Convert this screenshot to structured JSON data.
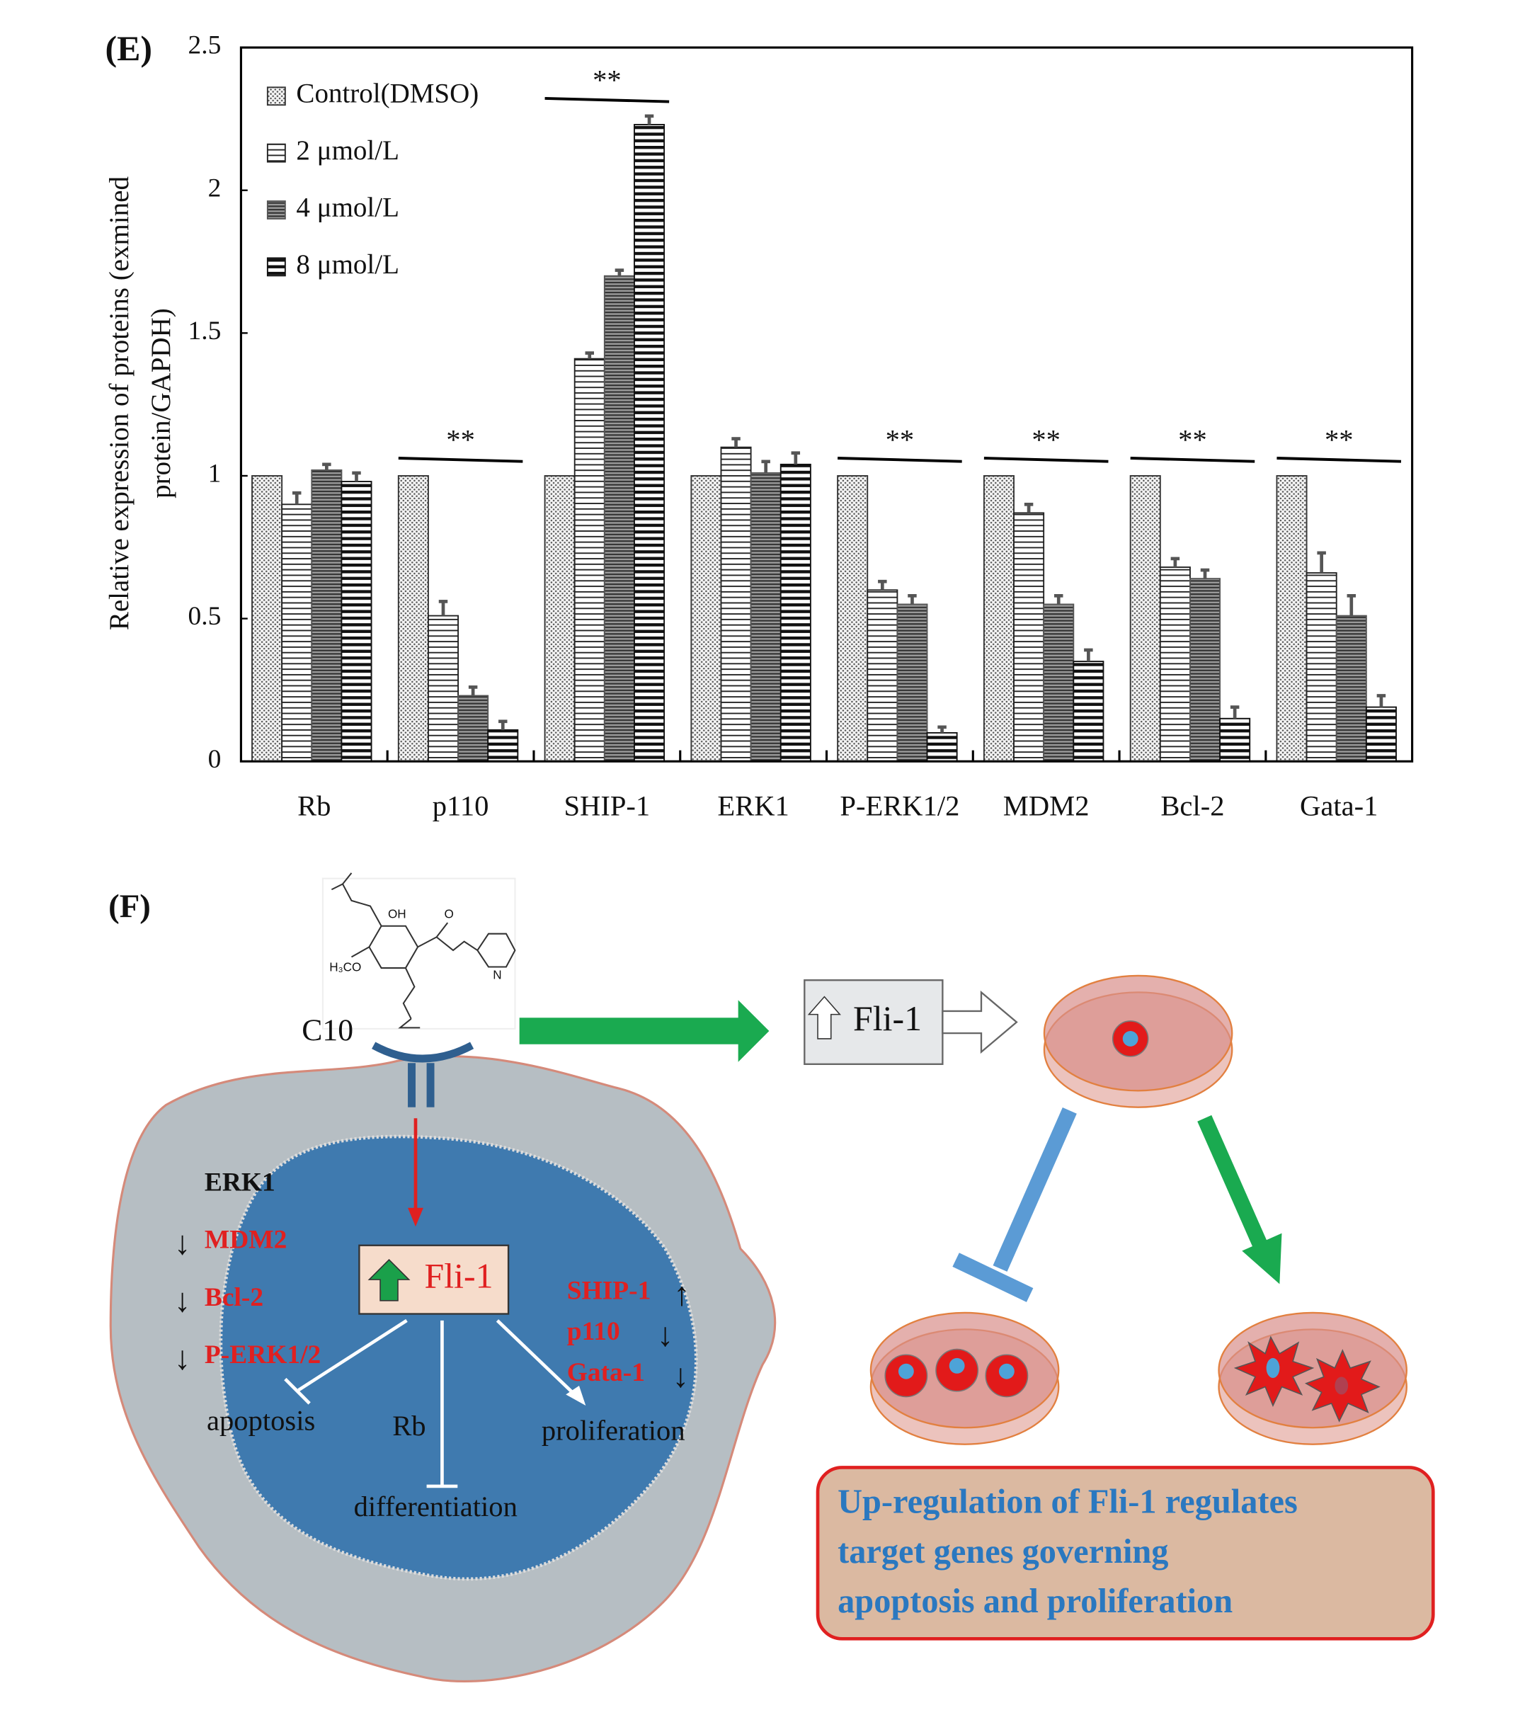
{
  "chart_data": {
    "type": "bar",
    "panel": "(E)",
    "ylabel": [
      "Relative expression of proteins (exmined",
      "protein/GAPDH)"
    ],
    "categories": [
      "Rb",
      "p110",
      "SHIP-1",
      "ERK1",
      "P-ERK1/2",
      "MDM2",
      "Bcl-2",
      "Gata-1"
    ],
    "series": [
      {
        "name": "Control(DMSO)",
        "color": "#333333",
        "pattern": "dots",
        "values": [
          1,
          1,
          1,
          1,
          1,
          1,
          1,
          1
        ]
      },
      {
        "name": "2 μmol/L",
        "color": "#222222",
        "pattern": "hstripe",
        "values": [
          0.9,
          0.51,
          1.41,
          1.1,
          0.6,
          0.87,
          0.68,
          0.66
        ],
        "errors": [
          0.04,
          0.05,
          0.02,
          0.03,
          0.03,
          0.03,
          0.03,
          0.07
        ]
      },
      {
        "name": "4 μmol/L",
        "color": "#555555",
        "pattern": "dense",
        "values": [
          1.02,
          0.23,
          1.7,
          1.01,
          0.55,
          0.55,
          0.64,
          0.51
        ],
        "errors": [
          0.02,
          0.03,
          0.02,
          0.04,
          0.03,
          0.03,
          0.03,
          0.07
        ]
      },
      {
        "name": "8 μmol/L",
        "color": "#111111",
        "pattern": "bold",
        "values": [
          0.98,
          0.11,
          2.23,
          1.04,
          0.1,
          0.35,
          0.15,
          0.19
        ],
        "errors": [
          0.03,
          0.03,
          0.03,
          0.04,
          0.02,
          0.04,
          0.04,
          0.04
        ]
      }
    ],
    "annotations": [
      {
        "text": "**",
        "category": "p110"
      },
      {
        "text": "**",
        "category": "SHIP-1"
      },
      {
        "text": "**",
        "category": "P-ERK1/2"
      },
      {
        "text": "**",
        "category": "MDM2"
      },
      {
        "text": "**",
        "category": "Bcl-2"
      },
      {
        "text": "**",
        "category": "Gata-1"
      }
    ],
    "ylim": [
      0,
      2.5
    ],
    "yticks": [
      0,
      0.5,
      1,
      1.5,
      2,
      2.5
    ],
    "legend": "upper left"
  },
  "diagram": {
    "panel": "(F)",
    "compound": "C10",
    "structure_labels": [
      "OH",
      "O",
      "H₃CO",
      "N"
    ],
    "fli_box": "Fli-1",
    "nucleus_fli": "Fli-1",
    "left_genes": [
      {
        "label": "ERK1"
      },
      {
        "label": "MDM2",
        "arrow": "↓"
      },
      {
        "label": "Bcl-2",
        "arrow": "↓"
      },
      {
        "label": "P-ERK1/2",
        "arrow": "↓"
      }
    ],
    "right_genes": [
      {
        "label": "SHIP-1",
        "arrow": "↑"
      },
      {
        "label": "p110",
        "arrow": "↓"
      },
      {
        "label": "Gata-1",
        "arrow": "↓"
      }
    ],
    "apoptosis": "apoptosis",
    "rb": "Rb",
    "proliferation": "proliferation",
    "differentiation": "differentiation",
    "summary": [
      "Up-regulation of Fli-1 regulates",
      "target genes governing",
      "apoptosis and proliferation"
    ]
  }
}
